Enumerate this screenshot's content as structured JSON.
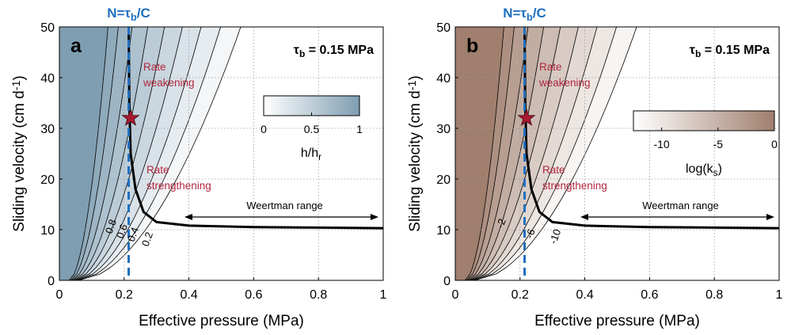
{
  "chart_data": [
    {
      "type": "contour",
      "panel_label": "a",
      "top_label": {
        "main": "N=τ",
        "sub": "b",
        "tail": "/C"
      },
      "tau_label": {
        "main": "τ",
        "sub": "b",
        "tail": " = 0.15 MPa"
      },
      "xlabel": "Effective pressure (MPa)",
      "ylabel": {
        "main": "Sliding velocity (cm d",
        "sup": "-1",
        "tail": ")"
      },
      "xlim": [
        0,
        1
      ],
      "ylim": [
        0,
        50
      ],
      "xticks": [
        "0",
        "0.2",
        "0.4",
        "0.6",
        "0.8",
        "1"
      ],
      "yticks": [
        "0",
        "10",
        "20",
        "30",
        "40",
        "50"
      ],
      "grid": true,
      "colormap": {
        "low": "#ffffff",
        "high": "#7f9eb2"
      },
      "colorbar": {
        "ticks": [
          "0",
          "0.5",
          "1"
        ],
        "label": {
          "main": "h/h",
          "sub": "r"
        }
      },
      "contour_labels": [
        "0.8",
        "0.6",
        "0.4",
        "0.2"
      ],
      "annotations": {
        "weakening": [
          "Rate",
          "weakening"
        ],
        "strengthening": [
          "Rate",
          "strengthening"
        ],
        "weertman": "Weertman range"
      },
      "threshold_N": 0.214,
      "star": {
        "x": 0.22,
        "y": 32
      },
      "steady_curve": [
        [
          0.214,
          50
        ],
        [
          0.216,
          35
        ],
        [
          0.22,
          25
        ],
        [
          0.235,
          18
        ],
        [
          0.26,
          13.5
        ],
        [
          0.3,
          11.5
        ],
        [
          0.4,
          10.8
        ],
        [
          0.6,
          10.5
        ],
        [
          0.8,
          10.4
        ],
        [
          1.0,
          10.3
        ]
      ]
    },
    {
      "type": "contour",
      "panel_label": "b",
      "top_label": {
        "main": "N=τ",
        "sub": "b",
        "tail": "/C"
      },
      "tau_label": {
        "main": "τ",
        "sub": "b",
        "tail": " = 0.15 MPa"
      },
      "xlabel": "Effective pressure (MPa)",
      "ylabel": {
        "main": "Sliding velocity (cm d",
        "sup": "-1",
        "tail": ")"
      },
      "xlim": [
        0,
        1
      ],
      "ylim": [
        0,
        50
      ],
      "xticks": [
        "0",
        "0.2",
        "0.4",
        "0.6",
        "0.8",
        "1"
      ],
      "yticks": [
        "0",
        "10",
        "20",
        "30",
        "40",
        "50"
      ],
      "grid": true,
      "colormap": {
        "low": "#ffffff",
        "high": "#a07f6e"
      },
      "colorbar": {
        "ticks": [
          "-10",
          "-5",
          "0"
        ],
        "label": {
          "main": "log(k",
          "sub": "s",
          "tail": ")"
        }
      },
      "contour_labels": [
        "-2",
        "-6",
        "-10"
      ],
      "annotations": {
        "weakening": [
          "Rate",
          "weakening"
        ],
        "strengthening": [
          "Rate",
          "strengthening"
        ],
        "weertman": "Weertman range"
      },
      "threshold_N": 0.214,
      "star": {
        "x": 0.22,
        "y": 32
      },
      "steady_curve": [
        [
          0.214,
          50
        ],
        [
          0.216,
          35
        ],
        [
          0.22,
          25
        ],
        [
          0.235,
          18
        ],
        [
          0.26,
          13.5
        ],
        [
          0.3,
          11.5
        ],
        [
          0.4,
          10.8
        ],
        [
          0.6,
          10.5
        ],
        [
          0.8,
          10.4
        ],
        [
          1.0,
          10.3
        ]
      ]
    }
  ]
}
